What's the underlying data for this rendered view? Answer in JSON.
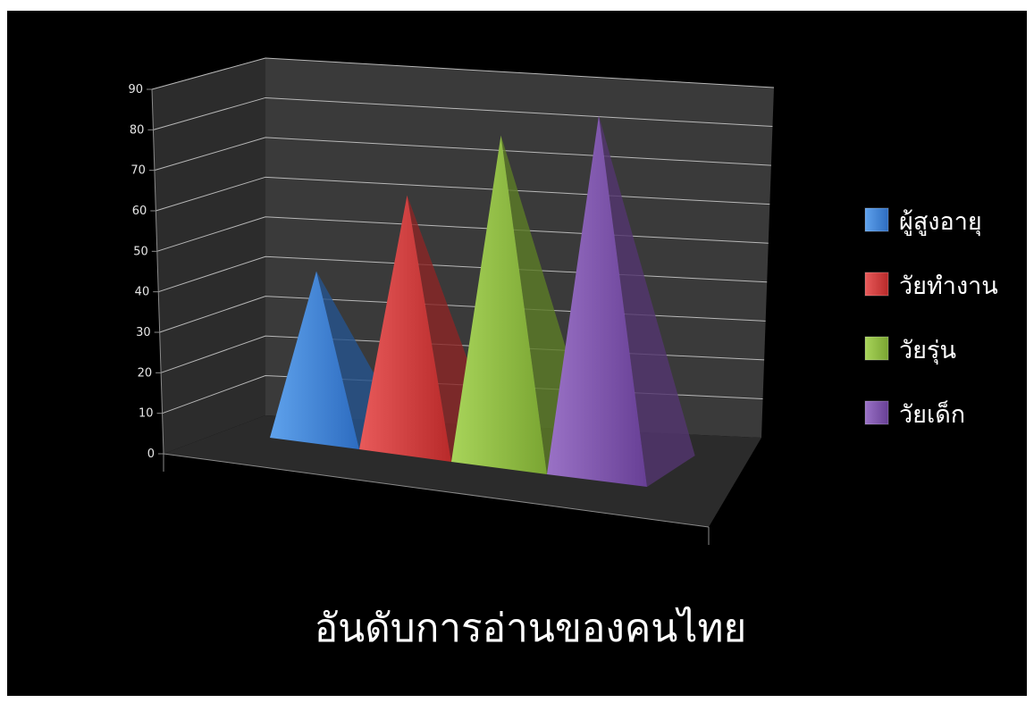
{
  "chart_data": {
    "type": "bar",
    "style": "3d-pyramid",
    "title": "อันดับการอ่านของคนไทย",
    "xlabel": "",
    "ylabel": "",
    "ylim": [
      0,
      90
    ],
    "yticks": [
      0,
      10,
      20,
      30,
      40,
      50,
      60,
      70,
      80,
      90
    ],
    "grid": true,
    "legend_position": "right",
    "series": [
      {
        "name": "ผู้สูงอายุ",
        "value": 40,
        "color": "#3a7fd5"
      },
      {
        "name": "วัยทำงาน",
        "value": 60,
        "color": "#d23b3b"
      },
      {
        "name": "วัยรุ่น",
        "value": 75,
        "color": "#8cbb3c"
      },
      {
        "name": "วัยเด็ก",
        "value": 80,
        "color": "#7d52a8"
      }
    ]
  }
}
